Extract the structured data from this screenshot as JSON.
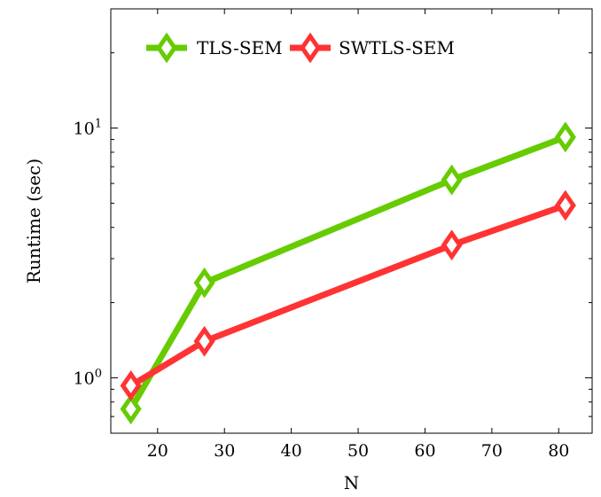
{
  "chart_data": {
    "type": "line",
    "xlabel": "N",
    "ylabel": "Runtime  (sec)",
    "xlim": [
      13,
      85
    ],
    "ylim": [
      0.6,
      30
    ],
    "y_scale": "log",
    "x_ticks": [
      20,
      30,
      40,
      50,
      60,
      70,
      80
    ],
    "y_ticks": [
      {
        "base": "10",
        "exp": "0",
        "value": 1
      },
      {
        "base": "10",
        "exp": "1",
        "value": 10
      }
    ],
    "legend_position": "top-left",
    "grid": false,
    "series": [
      {
        "name": "TLS-SEM",
        "color": "#66cc00",
        "marker": "diamond",
        "x": [
          16,
          27,
          64,
          81
        ],
        "y": [
          0.75,
          2.4,
          6.2,
          9.2
        ]
      },
      {
        "name": "SWTLS-SEM",
        "color": "#ff3333",
        "marker": "diamond",
        "x": [
          16,
          27,
          64,
          81
        ],
        "y": [
          0.93,
          1.4,
          3.4,
          4.9
        ]
      }
    ]
  }
}
